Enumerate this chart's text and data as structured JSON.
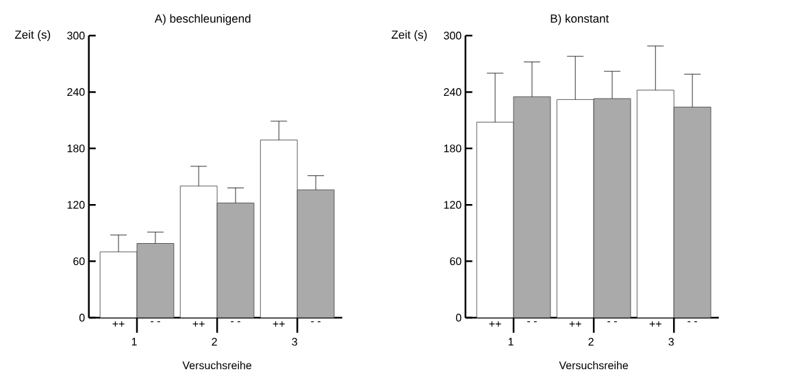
{
  "chart_data": [
    {
      "type": "bar",
      "title": "A) beschleunigend",
      "xlabel": "Versuchsreihe",
      "ylabel": "Zeit   (s)",
      "categories": [
        "1",
        "2",
        "3"
      ],
      "ylim": [
        0,
        300
      ],
      "yticks": [
        0,
        60,
        120,
        180,
        240,
        300
      ],
      "series": [
        {
          "name": "++",
          "color": "#ffffff",
          "values": [
            70,
            140,
            189
          ],
          "errors": [
            [
              70,
              88
            ],
            [
              140,
              161
            ],
            [
              189,
              209
            ]
          ]
        },
        {
          "name": "- -",
          "color": "#aaaaaa",
          "values": [
            79,
            122,
            136
          ],
          "errors": [
            [
              79,
              91
            ],
            [
              122,
              138
            ],
            [
              136,
              151
            ]
          ]
        }
      ]
    },
    {
      "type": "bar",
      "title": "B) konstant",
      "xlabel": "Versuchsreihe",
      "ylabel": "Zeit   (s)",
      "categories": [
        "1",
        "2",
        "3"
      ],
      "ylim": [
        0,
        300
      ],
      "yticks": [
        0,
        60,
        120,
        180,
        240,
        300
      ],
      "series": [
        {
          "name": "++",
          "color": "#ffffff",
          "values": [
            208,
            232,
            242
          ],
          "errors": [
            [
              208,
              260
            ],
            [
              232,
              278
            ],
            [
              242,
              289
            ]
          ]
        },
        {
          "name": "- -",
          "color": "#aaaaaa",
          "values": [
            235,
            233,
            224
          ],
          "errors": [
            [
              235,
              272
            ],
            [
              233,
              262
            ],
            [
              224,
              259
            ]
          ]
        }
      ]
    }
  ]
}
